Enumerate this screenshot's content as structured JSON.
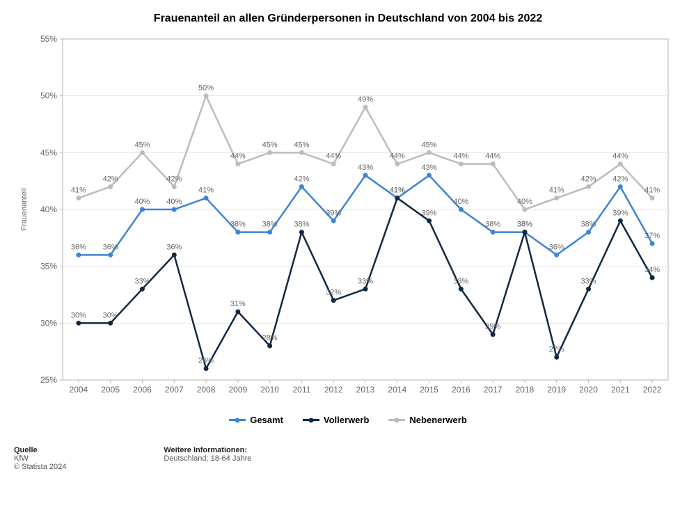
{
  "title": "Frauenanteil an allen Gründerpersonen in Deutschland von 2004 bis 2022",
  "chart": {
    "type": "line",
    "ylabel": "Frauenanteil",
    "categories": [
      "2004",
      "2005",
      "2006",
      "2007",
      "2008",
      "2009",
      "2010",
      "2011",
      "2012",
      "2013",
      "2014",
      "2015",
      "2016",
      "2017",
      "2018",
      "2019",
      "2020",
      "2021",
      "2022"
    ],
    "ylim": [
      25,
      55
    ],
    "ytick_step": 5,
    "ytick_suffix": "%",
    "background_color": "#ffffff",
    "plot_border_color": "#b5b5b5",
    "grid_color": "#e6e6e6",
    "marker_style": "circle",
    "marker_radius": 3.5,
    "line_width": 2.5,
    "axis_font_size": 12,
    "label_font_size": 11,
    "ylabel_font_size": 11,
    "title_font_size": 16,
    "data_label_color": "#666666",
    "series": [
      {
        "name": "Gesamt",
        "key": "gesamt",
        "color": "#3d84d6",
        "values": [
          36,
          36,
          40,
          40,
          41,
          38,
          38,
          42,
          39,
          43,
          41,
          43,
          40,
          38,
          38,
          36,
          38,
          42,
          37
        ]
      },
      {
        "name": "Vollerwerb",
        "key": "vollerwerb",
        "color": "#0f2844",
        "values": [
          30,
          30,
          33,
          36,
          26,
          31,
          28,
          38,
          32,
          33,
          41,
          39,
          33,
          29,
          38,
          27,
          33,
          39,
          34
        ]
      },
      {
        "name": "Nebenerwerb",
        "key": "nebenerwerb",
        "color": "#bcbcbc",
        "values": [
          41,
          42,
          45,
          42,
          50,
          44,
          45,
          45,
          44,
          49,
          44,
          45,
          44,
          44,
          40,
          41,
          42,
          44,
          41
        ]
      }
    ]
  },
  "legend": {
    "gesamt": "Gesamt",
    "vollerwerb": "Vollerwerb",
    "nebenerwerb": "Nebenerwerb"
  },
  "footer": {
    "source_head": "Quelle",
    "source_text": "KfW",
    "copyright": "© Statista 2024",
    "info_head": "Weitere Informationen:",
    "info_text": "Deutschland; 18-64 Jahre"
  }
}
